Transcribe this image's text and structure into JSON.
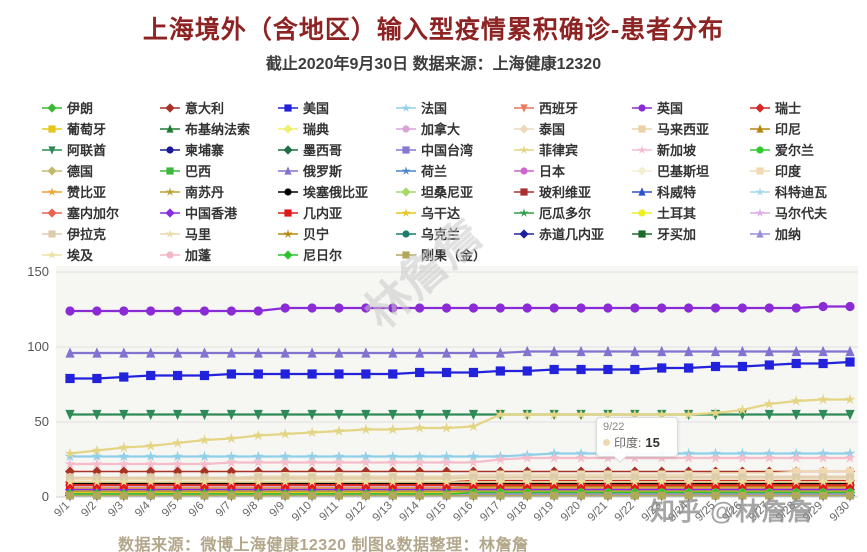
{
  "title": "上海境外（含地区）输入型疫情累积确诊-患者分布",
  "subtitle": "截止2020年9月30日 数据来源：上海健康12320",
  "footer": "数据来源：微博上海健康12320 制图&数据整理：林詹詹",
  "watermark_diagonal": "林詹詹",
  "watermark_corner": "知乎 @林詹詹",
  "colors": {
    "title": "#8e2323",
    "subtitle": "#3c3c3c",
    "footer": "#b3a78b"
  },
  "tooltip": {
    "date": "9/22",
    "series": "印度",
    "value": "15",
    "dot_color": "#f0d9b0"
  },
  "chart_data": {
    "type": "line",
    "x": [
      "9/1",
      "9/2",
      "9/3",
      "9/4",
      "9/5",
      "9/6",
      "9/7",
      "9/8",
      "9/9",
      "9/10",
      "9/11",
      "9/12",
      "9/13",
      "9/14",
      "9/15",
      "9/16",
      "9/17",
      "9/18",
      "9/19",
      "9/20",
      "9/21",
      "9/22",
      "9/23",
      "9/24",
      "9/25",
      "9/26",
      "9/27",
      "9/28",
      "9/29",
      "9/30"
    ],
    "ylim": [
      0,
      150
    ],
    "yticks": [
      0,
      50,
      100,
      150
    ],
    "grid": true,
    "legend_position": "top",
    "series": [
      {
        "name": "伊朗",
        "color": "#3cb832",
        "marker": "diamond",
        "start": 8,
        "end": 8
      },
      {
        "name": "意大利",
        "color": "#a93226",
        "marker": "diamond",
        "start": 17,
        "end": 17
      },
      {
        "name": "美国",
        "color": "#2222dd",
        "marker": "square",
        "values": [
          79,
          79,
          80,
          81,
          81,
          81,
          82,
          82,
          82,
          82,
          82,
          82,
          82,
          83,
          83,
          83,
          84,
          84,
          85,
          85,
          85,
          85,
          86,
          86,
          87,
          87,
          88,
          89,
          89,
          90
        ]
      },
      {
        "name": "法国",
        "color": "#8fd0e8",
        "marker": "star",
        "values": [
          27,
          27,
          27,
          27,
          27,
          27,
          27,
          27,
          27,
          27,
          27,
          27,
          27,
          27,
          27,
          27,
          27,
          28,
          29,
          29,
          29,
          29,
          29,
          29,
          29,
          29,
          29,
          29,
          29,
          29
        ]
      },
      {
        "name": "西班牙",
        "color": "#e87a5e",
        "marker": "triangle-down",
        "start": 12,
        "end": 13
      },
      {
        "name": "英国",
        "color": "#8a2bd6",
        "marker": "circle",
        "values": [
          124,
          124,
          124,
          124,
          124,
          124,
          124,
          124,
          126,
          126,
          126,
          126,
          126,
          126,
          126,
          126,
          126,
          126,
          126,
          126,
          126,
          126,
          126,
          126,
          126,
          126,
          126,
          126,
          127,
          127
        ]
      },
      {
        "name": "瑞士",
        "color": "#d62728",
        "marker": "diamond",
        "start": 10,
        "end": 11
      },
      {
        "name": "葡萄牙",
        "color": "#e3c51c",
        "marker": "square",
        "start": 9,
        "end": 9
      },
      {
        "name": "布基纳法索",
        "color": "#1e7d32",
        "marker": "triangle",
        "start": 3,
        "end": 3
      },
      {
        "name": "瑞典",
        "color": "#efef70",
        "marker": "diamond",
        "start": 3,
        "end": 3
      },
      {
        "name": "加拿大",
        "color": "#d8a3d8",
        "marker": "circle",
        "start": 7,
        "end": 7
      },
      {
        "name": "泰国",
        "color": "#ecdabe",
        "marker": "diamond",
        "start": 13,
        "end": 14
      },
      {
        "name": "马来西亚",
        "color": "#e9d2a8",
        "marker": "square",
        "start": 12,
        "end": 13
      },
      {
        "name": "印尼",
        "color": "#b8860b",
        "marker": "triangle",
        "start": 6,
        "end": 7
      },
      {
        "name": "阿联酋",
        "color": "#2e8b57",
        "marker": "triangle-down",
        "start": 55,
        "end": 55
      },
      {
        "name": "柬埔寨",
        "color": "#1a1a99",
        "marker": "circle",
        "start": 4,
        "end": 4
      },
      {
        "name": "墨西哥",
        "color": "#1d6e41",
        "marker": "diamond",
        "start": 3,
        "end": 3
      },
      {
        "name": "中国台湾",
        "color": "#8679d6",
        "marker": "square",
        "start": 5,
        "end": 5
      },
      {
        "name": "菲律宾",
        "color": "#e4d584",
        "marker": "star",
        "values": [
          29,
          31,
          33,
          34,
          36,
          38,
          39,
          41,
          42,
          43,
          44,
          45,
          45,
          46,
          46,
          47,
          55,
          55,
          55,
          55,
          55,
          55,
          55,
          55,
          56,
          58,
          62,
          64,
          65,
          65
        ]
      },
      {
        "name": "新加坡",
        "color": "#f5bccb",
        "marker": "star",
        "values": [
          22,
          22,
          22,
          22,
          22,
          22,
          23,
          23,
          23,
          23,
          23,
          23,
          23,
          23,
          23,
          23,
          25,
          26,
          26,
          26,
          26,
          26,
          26,
          26,
          26,
          26,
          26,
          26,
          26,
          26
        ]
      },
      {
        "name": "爱尔兰",
        "color": "#2fcc2f",
        "marker": "circle",
        "start": 2,
        "end": 2
      },
      {
        "name": "德国",
        "color": "#c3ba70",
        "marker": "diamond",
        "start": 5,
        "end": 5
      },
      {
        "name": "巴西",
        "color": "#3db83d",
        "marker": "square",
        "start": 4,
        "end": 5
      },
      {
        "name": "俄罗斯",
        "color": "#8173cf",
        "marker": "triangle",
        "values": [
          96,
          96,
          96,
          96,
          96,
          96,
          96,
          96,
          96,
          96,
          96,
          96,
          96,
          96,
          96,
          96,
          96,
          97,
          97,
          97,
          97,
          97,
          97,
          97,
          97,
          97,
          97,
          97,
          97,
          97
        ]
      },
      {
        "name": "荷兰",
        "color": "#4a86c8",
        "marker": "star",
        "start": 4,
        "end": 4
      },
      {
        "name": "日本",
        "color": "#cc66cc",
        "marker": "circle",
        "start": 6,
        "end": 6
      },
      {
        "name": "巴基斯坦",
        "color": "#f3eed2",
        "marker": "diamond",
        "start": 11,
        "end": 12
      },
      {
        "name": "印度",
        "color": "#f0d9b0",
        "marker": "square",
        "values": [
          12,
          12,
          13,
          13,
          13,
          13,
          13,
          14,
          14,
          14,
          14,
          14,
          14,
          14,
          14,
          15,
          15,
          15,
          15,
          15,
          15,
          15,
          15,
          15,
          16,
          16,
          16,
          17,
          17,
          17
        ]
      },
      {
        "name": "赞比亚",
        "color": "#f0a232",
        "marker": "star",
        "start": 6,
        "end": 6
      },
      {
        "name": "南苏丹",
        "color": "#b8a332",
        "marker": "star",
        "start": 4,
        "end": 4
      },
      {
        "name": "埃塞俄比亚",
        "color": "#000000",
        "marker": "circle",
        "start": 9,
        "end": 9
      },
      {
        "name": "坦桑尼亚",
        "color": "#a4d964",
        "marker": "diamond",
        "start": 5,
        "end": 5
      },
      {
        "name": "玻利维亚",
        "color": "#aa3030",
        "marker": "square",
        "start": 3,
        "end": 3
      },
      {
        "name": "科威特",
        "color": "#2a52cc",
        "marker": "triangle",
        "start": 2,
        "end": 2
      },
      {
        "name": "科特迪瓦",
        "color": "#a5d9e9",
        "marker": "star",
        "start": 2,
        "end": 2
      },
      {
        "name": "塞内加尔",
        "color": "#ec6350",
        "marker": "diamond",
        "start": 8,
        "end": 8
      },
      {
        "name": "中国香港",
        "color": "#8a2be2",
        "marker": "diamond",
        "start": 5,
        "end": 5
      },
      {
        "name": "几内亚",
        "color": "#e01a1a",
        "marker": "square",
        "start": 8,
        "end": 8
      },
      {
        "name": "乌干达",
        "color": "#e9c61f",
        "marker": "star",
        "start": 3,
        "end": 3
      },
      {
        "name": "厄瓜多尔",
        "color": "#2f9e44",
        "marker": "star",
        "start": 2,
        "end": 2
      },
      {
        "name": "土耳其",
        "color": "#efef25",
        "marker": "circle",
        "start": 2,
        "end": 3
      },
      {
        "name": "马尔代夫",
        "color": "#dcaae4",
        "marker": "star",
        "start": 1,
        "end": 2
      },
      {
        "name": "伊拉克",
        "color": "#dcccab",
        "marker": "square",
        "start": 13,
        "end": 13
      },
      {
        "name": "马里",
        "color": "#ead9a9",
        "marker": "star",
        "start": 2,
        "end": 2
      },
      {
        "name": "贝宁",
        "color": "#b8860b",
        "marker": "star",
        "start": 1,
        "end": 1
      },
      {
        "name": "乌克兰",
        "color": "#1e7a6e",
        "marker": "circle",
        "start": 2,
        "end": 2
      },
      {
        "name": "赤道几内亚",
        "color": "#20209e",
        "marker": "diamond",
        "start": 1,
        "end": 1
      },
      {
        "name": "牙买加",
        "color": "#1d6b2a",
        "marker": "square",
        "start": 1,
        "end": 1
      },
      {
        "name": "加纳",
        "color": "#9b8ed9",
        "marker": "triangle",
        "start": 1,
        "end": 2
      },
      {
        "name": "埃及",
        "color": "#e9e2a2",
        "marker": "star",
        "start": 10,
        "end": 10
      },
      {
        "name": "加蓬",
        "color": "#f2b6c6",
        "marker": "circle",
        "start": 1,
        "end": 1
      },
      {
        "name": "尼日尔",
        "color": "#2fc32f",
        "marker": "diamond",
        "start": 2,
        "end": 3
      },
      {
        "name": "刚果（金）",
        "color": "#b1a959",
        "marker": "square",
        "start": 1,
        "end": 1
      }
    ]
  }
}
